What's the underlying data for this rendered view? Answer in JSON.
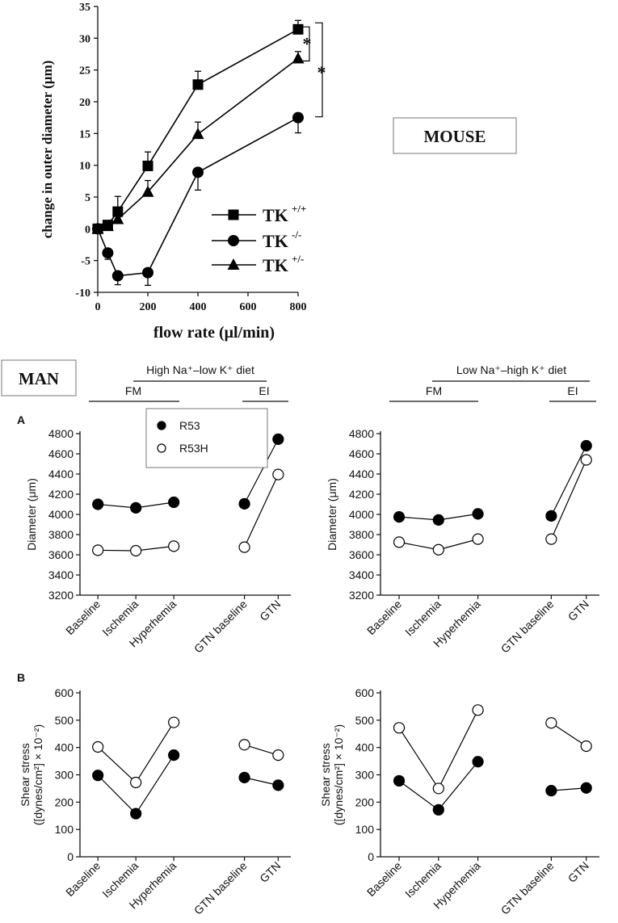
{
  "mouse": {
    "box_label": "MOUSE",
    "ylabel": "change in outer diameter (μm)",
    "xlabel": "flow rate  (μl/min)",
    "chart_data": {
      "type": "line",
      "title": "",
      "xlabel": "flow rate  (μl/min)",
      "ylabel": "change in outer diameter (μm)",
      "xlim": [
        0,
        800
      ],
      "ylim": [
        -10,
        35
      ],
      "xticks": [
        0,
        200,
        400,
        600,
        800
      ],
      "yticks": [
        -10,
        -5,
        0,
        5,
        10,
        15,
        20,
        25,
        30,
        35
      ],
      "x": [
        0,
        40,
        80,
        200,
        400,
        800
      ],
      "series": [
        {
          "name": "TK",
          "sup": "+/+",
          "marker": "square",
          "values": [
            0,
            0.6,
            2.7,
            9.9,
            22.7,
            31.4
          ],
          "err": [
            0,
            0,
            2.4,
            2.2,
            2.1,
            1.4
          ]
        },
        {
          "name": "TK",
          "sup": "-/-",
          "marker": "circle",
          "values": [
            0,
            -3.8,
            -7.4,
            -6.9,
            8.9,
            17.5
          ],
          "err": [
            0,
            1.0,
            1.4,
            2.0,
            2.8,
            2.4
          ]
        },
        {
          "name": "TK",
          "sup": "+/-",
          "marker": "triangle",
          "values": [
            0,
            0.4,
            1.5,
            5.8,
            14.9,
            26.8
          ],
          "err": [
            0,
            0,
            0,
            1.8,
            1.9,
            1.1
          ]
        }
      ],
      "annotations": [
        "*",
        "*"
      ],
      "legend_position": "lower-right"
    }
  },
  "man": {
    "box_label": "MAN",
    "legend": [
      {
        "symbol": "●",
        "label": "R53",
        "color": "#000000"
      },
      {
        "symbol": "○",
        "label": "R53H",
        "color": "#ffffff"
      }
    ],
    "columns": [
      {
        "diet": "High Na⁺–low K⁺ diet",
        "group1": "FM",
        "group2": "EI"
      },
      {
        "diet": "Low Na⁺–high K⁺ diet",
        "group1": "FM",
        "group2": "EI"
      }
    ],
    "panels": [
      {
        "letter": "A",
        "ylabel": "Diameter (μm)",
        "ylabel2": ""
      },
      {
        "letter": "B",
        "ylabel": "Shear stress",
        "ylabel2": "([dynes/cm²] × 10⁻²)"
      }
    ],
    "chart_data": [
      {
        "type": "line",
        "panel": "A",
        "column": "High Na⁺–low K⁺ diet",
        "ylabel": "Diameter (μm)",
        "ylim": [
          3200,
          4800
        ],
        "yticks": [
          3200,
          3400,
          3600,
          3800,
          4000,
          4200,
          4400,
          4600,
          4800
        ],
        "categories": [
          "Baseline",
          "Ischemia",
          "Hyperhemia",
          "GTN baseline",
          "GTN"
        ],
        "series": [
          {
            "name": "R53",
            "values": [
              4100,
              4065,
              4120,
              4105,
              4745
            ]
          },
          {
            "name": "R53H",
            "values": [
              3645,
              3640,
              3685,
              3675,
              4395
            ]
          }
        ]
      },
      {
        "type": "line",
        "panel": "A",
        "column": "Low Na⁺–high K⁺ diet",
        "ylabel": "Diameter (μm)",
        "ylim": [
          3200,
          4800
        ],
        "yticks": [
          3200,
          3400,
          3600,
          3800,
          4000,
          4200,
          4400,
          4600,
          4800
        ],
        "categories": [
          "Baseline",
          "Ischemia",
          "Hyperhemia",
          "GTN baseline",
          "GTN"
        ],
        "series": [
          {
            "name": "R53",
            "values": [
              3975,
              3945,
              4005,
              3985,
              4680
            ]
          },
          {
            "name": "R53H",
            "values": [
              3725,
              3650,
              3755,
              3755,
              4540
            ]
          }
        ]
      },
      {
        "type": "line",
        "panel": "B",
        "column": "High Na⁺–low K⁺ diet",
        "ylabel": "Shear stress ([dynes/cm²] × 10⁻²)",
        "ylim": [
          0,
          600
        ],
        "yticks": [
          0,
          100,
          200,
          300,
          400,
          500,
          600
        ],
        "categories": [
          "Baseline",
          "Ischemia",
          "Hyperhemia",
          "GTN baseline",
          "GTN"
        ],
        "series": [
          {
            "name": "R53",
            "values": [
              298,
              158,
              372,
              290,
              262
            ]
          },
          {
            "name": "R53H",
            "values": [
              402,
              272,
              492,
              410,
              372
            ]
          }
        ]
      },
      {
        "type": "line",
        "panel": "B",
        "column": "Low Na⁺–high K⁺ diet",
        "ylabel": "Shear stress ([dynes/cm²] × 10⁻²)",
        "ylim": [
          0,
          600
        ],
        "yticks": [
          0,
          100,
          200,
          300,
          400,
          500,
          600
        ],
        "categories": [
          "Baseline",
          "Ischemia",
          "Hyperhemia",
          "GTN baseline",
          "GTN"
        ],
        "series": [
          {
            "name": "R53",
            "values": [
              278,
              172,
              348,
              242,
              252
            ]
          },
          {
            "name": "R53H",
            "values": [
              472,
              250,
              537,
              490,
              405
            ]
          }
        ]
      }
    ]
  }
}
